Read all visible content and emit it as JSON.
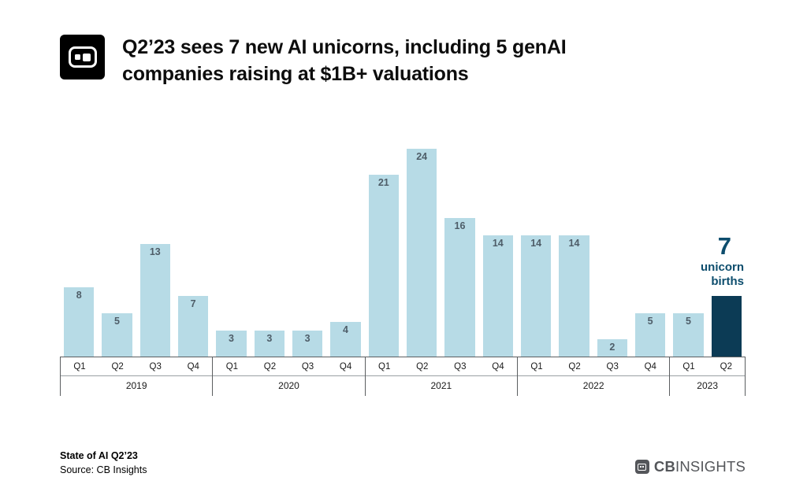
{
  "header": {
    "title_line1": "Q2’23 sees 7 new AI unicorns, including 5 genAI",
    "title_line2": "companies raising at $1B+ valuations"
  },
  "chart_data": {
    "type": "bar",
    "categories": [
      "Q1",
      "Q2",
      "Q3",
      "Q4",
      "Q1",
      "Q2",
      "Q3",
      "Q4",
      "Q1",
      "Q2",
      "Q3",
      "Q4",
      "Q1",
      "Q2",
      "Q3",
      "Q4",
      "Q1",
      "Q2"
    ],
    "values": [
      8,
      5,
      13,
      7,
      3,
      3,
      3,
      4,
      21,
      24,
      16,
      14,
      14,
      14,
      2,
      5,
      5,
      7
    ],
    "year_groups": [
      {
        "label": "2019",
        "count": 4
      },
      {
        "label": "2020",
        "count": 4
      },
      {
        "label": "2021",
        "count": 4
      },
      {
        "label": "2022",
        "count": 4
      },
      {
        "label": "2023",
        "count": 2
      }
    ],
    "highlight_index": 17,
    "annotation": {
      "value": "7",
      "line1": "unicorn",
      "line2": "births"
    },
    "colors": {
      "bar": "#b7dbe6",
      "highlight_bar": "#0c3b55",
      "value_label": "#4e5d68",
      "annotation": "#0d4d6d"
    },
    "ylim": [
      0,
      26
    ],
    "grid": false,
    "legend": "none"
  },
  "footer": {
    "note_title": "State of AI Q2’23",
    "source": "Source: CB Insights",
    "brand_cb": "CB",
    "brand_insights": "INSIGHTS"
  }
}
